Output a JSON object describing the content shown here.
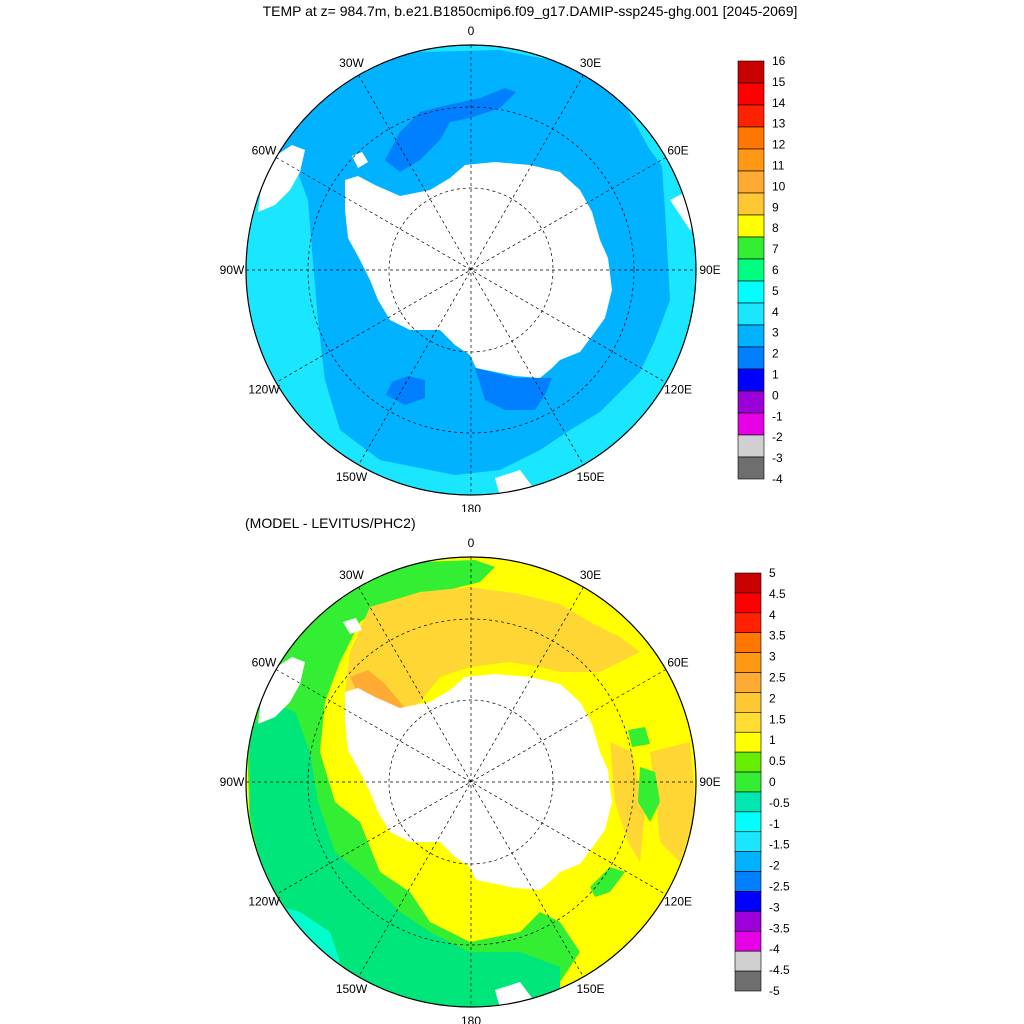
{
  "title": "TEMP at z= 984.7m, b.e21.B1850cmip6.f09_g17.DAMIP-ssp245-ghg.001 [2045-2069]",
  "subtitle": "(MODEL - LEVITUS/PHC2)",
  "longitude_labels": [
    "0",
    "30E",
    "60E",
    "90E",
    "120E",
    "150E",
    "180",
    "150W",
    "120W",
    "90W",
    "60W",
    "30W"
  ],
  "colors": {
    "land": "#ffffff",
    "top_scale": [
      "#6e6e6e",
      "#d0d0d0",
      "#e600e6",
      "#9b00d9",
      "#0000ff",
      "#0080ff",
      "#00b2ff",
      "#1ae6ff",
      "#00ffff",
      "#00ff80",
      "#33ee33",
      "#ffff00",
      "#ffc833",
      "#ffaa33",
      "#ff9914",
      "#ff7700",
      "#ff2200",
      "#ff0000",
      "#c80000"
    ],
    "bottom_scale": [
      "#6e6e6e",
      "#d0d0d0",
      "#e600e6",
      "#9b00d9",
      "#0000ff",
      "#0080ff",
      "#00b2ff",
      "#1ae6ff",
      "#00ffff",
      "#00e6b0",
      "#33ee33",
      "#66ee00",
      "#ffff00",
      "#ffdd33",
      "#ffc833",
      "#ffaa33",
      "#ff9914",
      "#ff7700",
      "#ff2200",
      "#ff0000",
      "#c80000"
    ]
  },
  "top_map": {
    "colorbar_labels": [
      "16",
      "15",
      "14",
      "13",
      "12",
      "11",
      "10",
      "9",
      "8",
      "7",
      "6",
      "5",
      "4",
      "3",
      "2",
      "1",
      "0",
      "-1",
      "-2",
      "-3",
      "-4"
    ]
  },
  "bottom_map": {
    "colorbar_labels": [
      "5",
      "4.5",
      "4",
      "3.5",
      "3",
      "2.5",
      "2",
      "1.5",
      "1",
      "0.5",
      "0",
      "-0.5",
      "-1",
      "-1.5",
      "-2",
      "-2.5",
      "-3",
      "-3.5",
      "-4",
      "-4.5",
      "-5"
    ]
  }
}
